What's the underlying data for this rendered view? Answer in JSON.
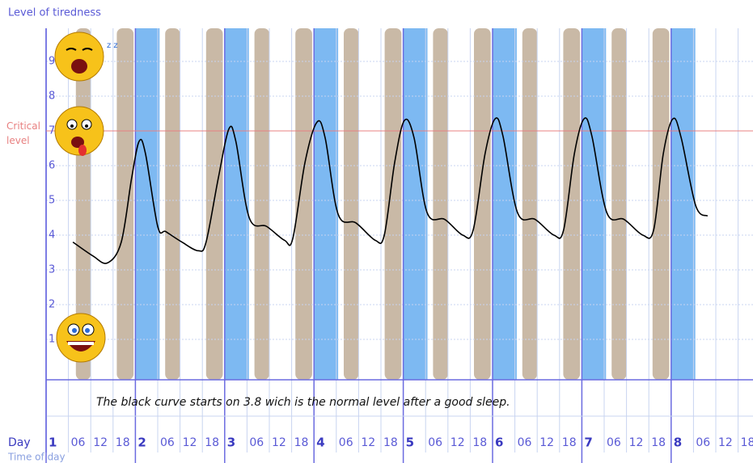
{
  "chart_data": {
    "type": "line",
    "y_label": "Level of tiredness",
    "x_label_day": "Day",
    "x_label_time": "Time of day",
    "annotation": "The black curve starts on 3.8 wich is the normal level after a good sleep.",
    "critical_level": 7,
    "critical_label": "Critical level",
    "critical_color": "#e88080",
    "xlim": [
      0,
      190
    ],
    "ylim": [
      0,
      10
    ],
    "yticks": [
      1,
      2,
      3,
      4,
      5,
      6,
      7,
      8,
      9
    ],
    "xticks": [
      {
        "value": 0,
        "label": "1"
      },
      {
        "value": 6,
        "label": "06"
      },
      {
        "value": 12,
        "label": "12"
      },
      {
        "value": 18,
        "label": "18"
      },
      {
        "value": 24,
        "label": "2"
      },
      {
        "value": 30,
        "label": "06"
      },
      {
        "value": 36,
        "label": "12"
      },
      {
        "value": 42,
        "label": "18"
      },
      {
        "value": 48,
        "label": "3"
      },
      {
        "value": 54,
        "label": "06"
      },
      {
        "value": 60,
        "label": "12"
      },
      {
        "value": 66,
        "label": "18"
      },
      {
        "value": 72,
        "label": "4"
      },
      {
        "value": 78,
        "label": "06"
      },
      {
        "value": 84,
        "label": "12"
      },
      {
        "value": 90,
        "label": "18"
      },
      {
        "value": 96,
        "label": "5"
      },
      {
        "value": 102,
        "label": "06"
      },
      {
        "value": 108,
        "label": "12"
      },
      {
        "value": 114,
        "label": "18"
      },
      {
        "value": 120,
        "label": "6"
      },
      {
        "value": 126,
        "label": "06"
      },
      {
        "value": 132,
        "label": "12"
      },
      {
        "value": 138,
        "label": "18"
      },
      {
        "value": 144,
        "label": "7"
      },
      {
        "value": 150,
        "label": "06"
      },
      {
        "value": 156,
        "label": "12"
      },
      {
        "value": 162,
        "label": "18"
      },
      {
        "value": 168,
        "label": "8"
      },
      {
        "value": 174,
        "label": "06"
      },
      {
        "value": 180,
        "label": "12"
      },
      {
        "value": 186,
        "label": "18"
      }
    ],
    "grid": true,
    "brown_color": "#c9b9a6",
    "blue_color": "#7db9f2",
    "brown_intervals": [
      [
        8,
        12
      ],
      [
        19,
        23.5
      ],
      [
        32,
        36
      ],
      [
        43,
        47.5
      ],
      [
        56,
        60
      ],
      [
        67,
        71.5
      ],
      [
        80,
        84
      ],
      [
        91,
        95.5
      ],
      [
        104,
        108
      ],
      [
        115,
        119.5
      ],
      [
        128,
        132
      ],
      [
        139,
        143.5
      ],
      [
        152,
        156
      ],
      [
        163,
        167.5
      ]
    ],
    "blue_intervals": [
      [
        24,
        30.5
      ],
      [
        48,
        54.5
      ],
      [
        72,
        78.5
      ],
      [
        96,
        102.5
      ],
      [
        120,
        126.5
      ],
      [
        144,
        150.5
      ],
      [
        168,
        174.5
      ]
    ],
    "series": [
      {
        "color": "#000000",
        "x": [
          7.2,
          12.6,
          16.5,
          20.2,
          23,
          25,
          26.7,
          30,
          32.2,
          36.5,
          40.9,
          43,
          46.3,
          49.1,
          51,
          54.6,
          59.3,
          64.1,
          66.3,
          69.6,
          72.8,
          75,
          78.5,
          83.3,
          88.5,
          90.9,
          93.7,
          96.3,
          98.9,
          102.4,
          107.2,
          112,
          114.8,
          118,
          120.7,
          122.8,
          126.7,
          131.5,
          136.5,
          139.1,
          142,
          144.6,
          146.7,
          150.7,
          155.4,
          160.4,
          163.3,
          165.9,
          168.5,
          170.7,
          174.6,
          177.8
        ],
        "values": [
          3.8,
          3.4,
          3.2,
          3.8,
          5.65,
          6.7,
          6.35,
          4.25,
          4.1,
          3.8,
          3.55,
          3.8,
          5.65,
          7.05,
          6.7,
          4.5,
          4.25,
          3.85,
          3.9,
          6.1,
          7.25,
          6.8,
          4.6,
          4.35,
          3.85,
          4.0,
          6.1,
          7.3,
          6.8,
          4.65,
          4.45,
          4.0,
          4.15,
          6.35,
          7.35,
          6.85,
          4.65,
          4.45,
          4.0,
          4.15,
          6.35,
          7.35,
          6.85,
          4.65,
          4.45,
          4.0,
          4.15,
          6.35,
          7.35,
          6.8,
          4.85,
          4.55
        ]
      }
    ]
  }
}
